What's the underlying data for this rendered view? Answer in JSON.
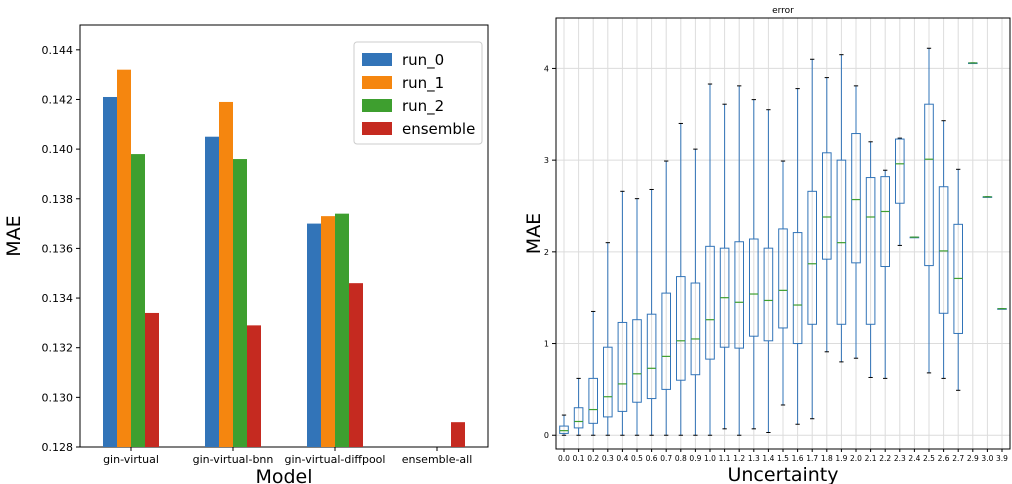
{
  "chart_data": [
    {
      "type": "bar",
      "title": "",
      "xlabel": "Model",
      "ylabel": "MAE",
      "categories": [
        "gin-virtual",
        "gin-virtual-bnn",
        "gin-virtual-diffpool",
        "ensemble-all"
      ],
      "ylim": [
        0.128,
        0.145
      ],
      "yticks": [
        "0.128",
        "0.130",
        "0.132",
        "0.134",
        "0.136",
        "0.138",
        "0.140",
        "0.142",
        "0.144"
      ],
      "legend_position": "top-right",
      "grid": false,
      "series": [
        {
          "name": "run_0",
          "color": "#3274b8",
          "values": [
            0.1421,
            0.1405,
            0.137,
            null
          ]
        },
        {
          "name": "run_1",
          "color": "#f5860f",
          "values": [
            0.1432,
            0.1419,
            0.1373,
            null
          ]
        },
        {
          "name": "run_2",
          "color": "#3e9f2f",
          "values": [
            0.1398,
            0.1396,
            0.1374,
            null
          ]
        },
        {
          "name": "ensemble",
          "color": "#c52a20",
          "values": [
            0.1334,
            0.1329,
            0.1346,
            0.129
          ]
        }
      ]
    },
    {
      "type": "box",
      "title": "error",
      "xlabel": "Uncertainty",
      "ylabel": "MAE",
      "ylim": [
        -0.15,
        4.55
      ],
      "yticks": [
        "0",
        "1",
        "2",
        "3",
        "4"
      ],
      "grid": true,
      "box_color": "#3274b8",
      "median_color": "#3e9f2f",
      "categories": [
        "0.0",
        "0.1",
        "0.2",
        "0.3",
        "0.4",
        "0.5",
        "0.6",
        "0.7",
        "0.8",
        "0.9",
        "1.0",
        "1.1",
        "1.2",
        "1.3",
        "1.4",
        "1.5",
        "1.6",
        "1.7",
        "1.8",
        "1.9",
        "2.0",
        "2.1",
        "2.2",
        "2.3",
        "2.4",
        "2.5",
        "2.6",
        "2.7",
        "2.9",
        "3.0",
        "3.9"
      ],
      "boxes": [
        {
          "min": 0.0,
          "q1": 0.02,
          "median": 0.05,
          "q3": 0.1,
          "max": 0.22
        },
        {
          "min": 0.0,
          "q1": 0.08,
          "median": 0.15,
          "q3": 0.3,
          "max": 0.62
        },
        {
          "min": 0.0,
          "q1": 0.13,
          "median": 0.28,
          "q3": 0.62,
          "max": 1.35
        },
        {
          "min": 0.0,
          "q1": 0.2,
          "median": 0.42,
          "q3": 0.96,
          "max": 2.1
        },
        {
          "min": 0.0,
          "q1": 0.26,
          "median": 0.56,
          "q3": 1.23,
          "max": 2.66
        },
        {
          "min": 0.0,
          "q1": 0.36,
          "median": 0.67,
          "q3": 1.26,
          "max": 2.58
        },
        {
          "min": 0.0,
          "q1": 0.4,
          "median": 0.73,
          "q3": 1.32,
          "max": 2.68
        },
        {
          "min": 0.0,
          "q1": 0.5,
          "median": 0.86,
          "q3": 1.55,
          "max": 2.99
        },
        {
          "min": 0.0,
          "q1": 0.6,
          "median": 1.03,
          "q3": 1.73,
          "max": 3.4
        },
        {
          "min": 0.0,
          "q1": 0.66,
          "median": 1.05,
          "q3": 1.66,
          "max": 3.12
        },
        {
          "min": 0.0,
          "q1": 0.83,
          "median": 1.26,
          "q3": 2.06,
          "max": 3.83
        },
        {
          "min": 0.07,
          "q1": 0.96,
          "median": 1.5,
          "q3": 2.04,
          "max": 3.61
        },
        {
          "min": 0.0,
          "q1": 0.95,
          "median": 1.45,
          "q3": 2.11,
          "max": 3.81
        },
        {
          "min": 0.07,
          "q1": 1.08,
          "median": 1.54,
          "q3": 2.14,
          "max": 3.66
        },
        {
          "min": 0.03,
          "q1": 1.03,
          "median": 1.47,
          "q3": 2.04,
          "max": 3.55
        },
        {
          "min": 0.33,
          "q1": 1.17,
          "median": 1.58,
          "q3": 2.25,
          "max": 2.99
        },
        {
          "min": 0.12,
          "q1": 1.0,
          "median": 1.42,
          "q3": 2.21,
          "max": 3.78
        },
        {
          "min": 0.18,
          "q1": 1.21,
          "median": 1.87,
          "q3": 2.66,
          "max": 4.1
        },
        {
          "min": 0.91,
          "q1": 1.92,
          "median": 2.38,
          "q3": 3.08,
          "max": 3.9
        },
        {
          "min": 0.8,
          "q1": 1.21,
          "median": 2.1,
          "q3": 3.0,
          "max": 4.15
        },
        {
          "min": 0.84,
          "q1": 1.88,
          "median": 2.57,
          "q3": 3.29,
          "max": 3.81
        },
        {
          "min": 0.63,
          "q1": 1.21,
          "median": 2.38,
          "q3": 2.81,
          "max": 3.2
        },
        {
          "min": 0.62,
          "q1": 1.84,
          "median": 2.44,
          "q3": 2.82,
          "max": 2.89
        },
        {
          "min": 2.07,
          "q1": 2.53,
          "median": 2.96,
          "q3": 3.23,
          "max": 3.24
        },
        {
          "min": 2.16,
          "q1": 2.16,
          "median": 2.16,
          "q3": 2.16,
          "max": 2.16
        },
        {
          "min": 0.68,
          "q1": 1.85,
          "median": 3.01,
          "q3": 3.61,
          "max": 4.22
        },
        {
          "min": 0.62,
          "q1": 1.33,
          "median": 2.01,
          "q3": 2.71,
          "max": 3.43
        },
        {
          "min": 0.49,
          "q1": 1.11,
          "median": 1.71,
          "q3": 2.3,
          "max": 2.9
        },
        {
          "min": 4.06,
          "q1": 4.06,
          "median": 4.06,
          "q3": 4.06,
          "max": 4.06
        },
        {
          "min": 2.6,
          "q1": 2.6,
          "median": 2.6,
          "q3": 2.6,
          "max": 2.6
        },
        {
          "min": 1.38,
          "q1": 1.38,
          "median": 1.38,
          "q3": 1.38,
          "max": 1.38
        }
      ]
    }
  ]
}
